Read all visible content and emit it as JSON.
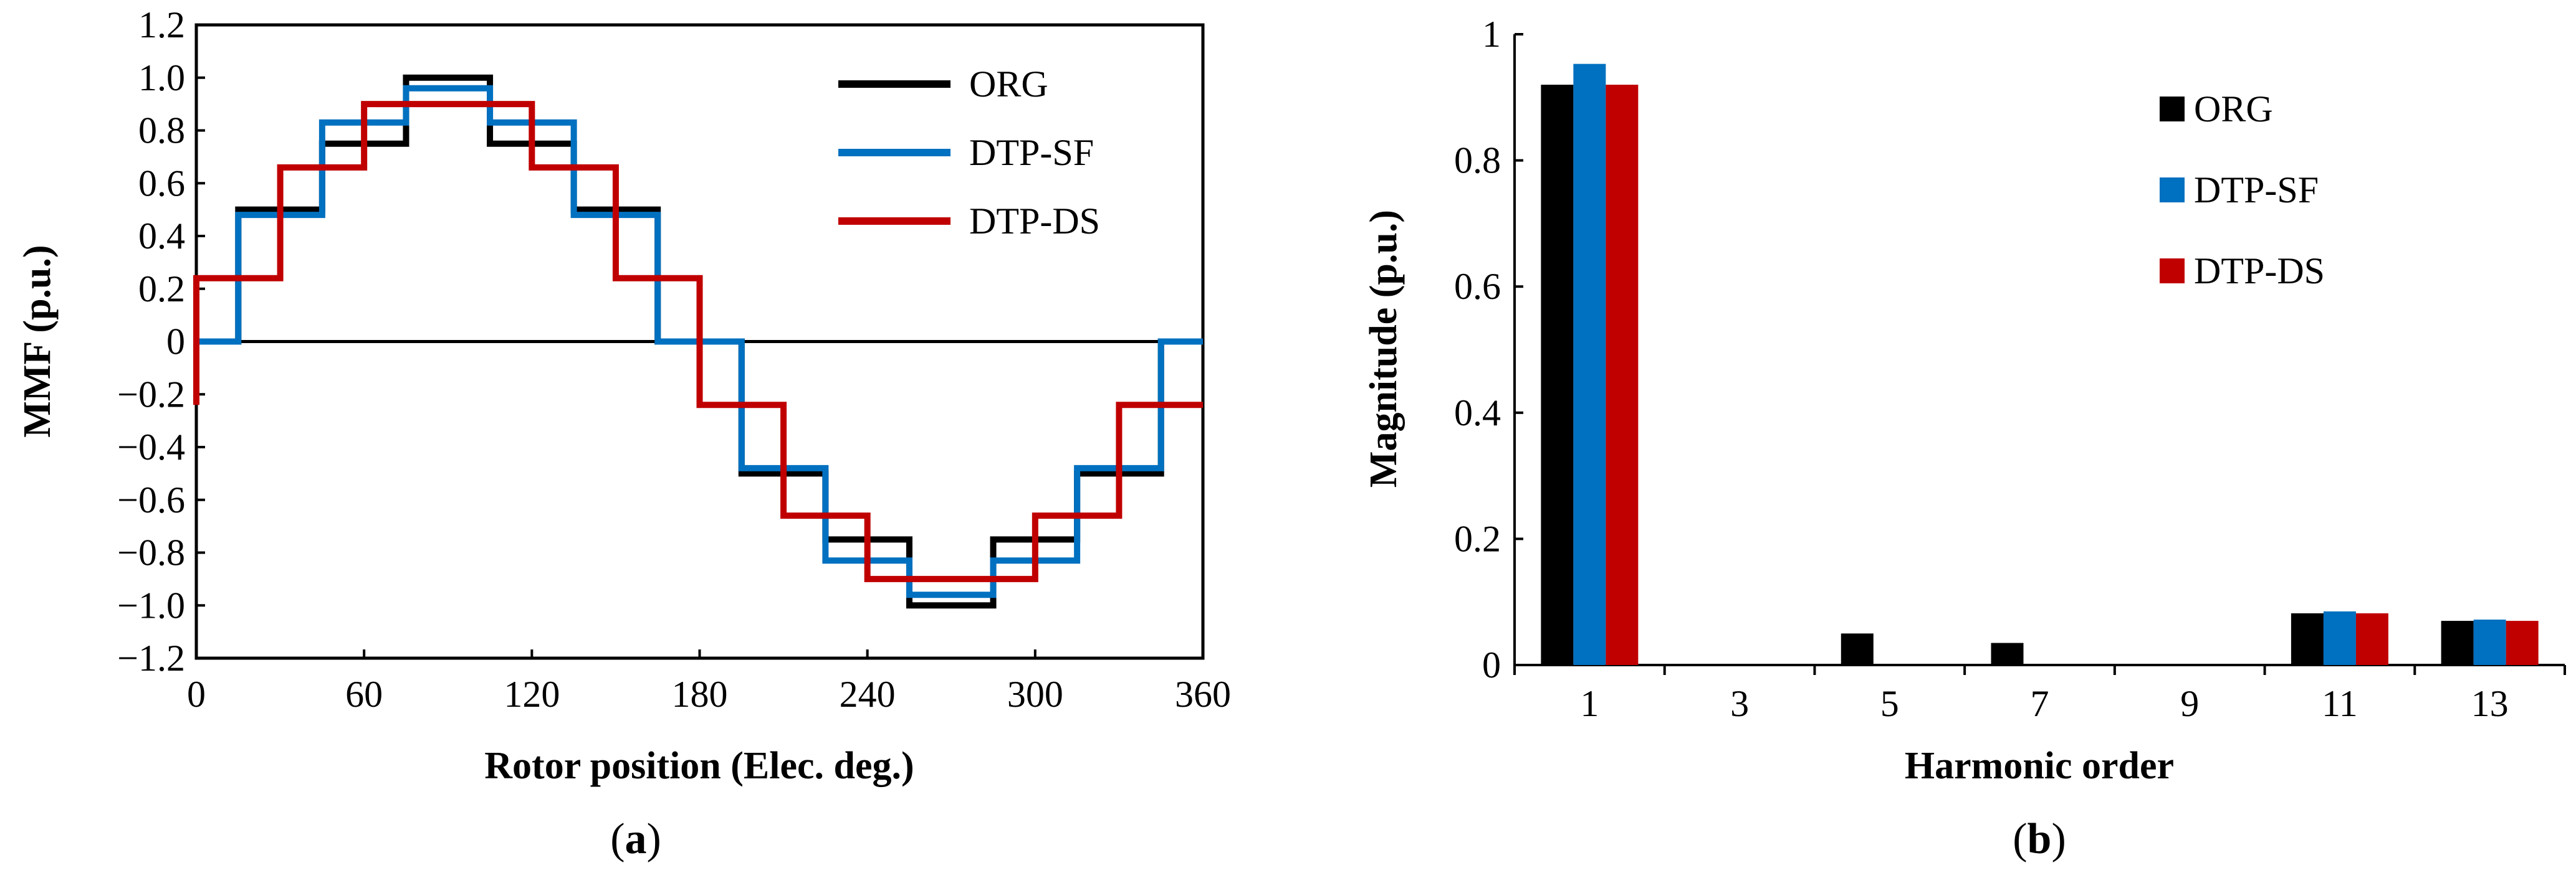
{
  "chart_data": [
    {
      "type": "line",
      "caption": {
        "prefix": "(",
        "letter": "a",
        "suffix": ")"
      },
      "xlabel": "Rotor position (Elec. deg.)",
      "ylabel": "MMF (p.u.)",
      "xlim": [
        0,
        360
      ],
      "ylim": [
        -1.2,
        1.2
      ],
      "xticks": [
        0,
        60,
        120,
        180,
        240,
        300,
        360
      ],
      "yticks": [
        1.2,
        1.0,
        0.8,
        0.6,
        0.4,
        0.2,
        0,
        -0.2,
        -0.4,
        -0.6,
        -0.8,
        -1.0,
        -1.2
      ],
      "ytick_labels": [
        "1.2",
        "1.0",
        "0.8",
        "0.6",
        "0.4",
        "0.2",
        "0",
        "−0.2",
        "−0.4",
        "−0.6",
        "−0.8",
        "−1.0",
        "−1.2"
      ],
      "step": true,
      "zero_line": true,
      "legend_position": "top-right",
      "series": [
        {
          "name": "ORG",
          "color": "#000000",
          "x": [
            0,
            15,
            45,
            75,
            105,
            135,
            165,
            195,
            225,
            255,
            285,
            315,
            345,
            360
          ],
          "y": [
            0,
            0.5,
            0.75,
            1.0,
            0.75,
            0.5,
            0,
            -0.5,
            -0.75,
            -1.0,
            -0.75,
            -0.5,
            0,
            0
          ]
        },
        {
          "name": "DTP-SF",
          "color": "#0070C0",
          "x": [
            0,
            15,
            45,
            75,
            105,
            135,
            165,
            195,
            225,
            255,
            285,
            315,
            345,
            360
          ],
          "y": [
            0,
            0.48,
            0.83,
            0.96,
            0.83,
            0.48,
            0,
            -0.48,
            -0.83,
            -0.96,
            -0.83,
            -0.48,
            0,
            0
          ]
        },
        {
          "name": "DTP-DS",
          "color": "#C00000",
          "x": [
            0,
            0,
            30,
            60,
            120,
            150,
            180,
            210,
            240,
            300,
            330,
            360
          ],
          "y": [
            -0.24,
            0.24,
            0.66,
            0.9,
            0.66,
            0.24,
            -0.24,
            -0.66,
            -0.9,
            -0.66,
            -0.24,
            -0.24
          ]
        }
      ]
    },
    {
      "type": "bar",
      "caption": {
        "prefix": "(",
        "letter": "b",
        "suffix": ")"
      },
      "xlabel": "Harmonic order",
      "ylabel": "Magnitude (p.u.)",
      "categories": [
        "1",
        "3",
        "5",
        "7",
        "9",
        "11",
        "13"
      ],
      "ylim": [
        0,
        1
      ],
      "yticks": [
        0,
        0.2,
        0.4,
        0.6,
        0.8,
        1
      ],
      "ytick_labels": [
        "0",
        "0.2",
        "0.4",
        "0.6",
        "0.8",
        "1"
      ],
      "legend_position": "top-right",
      "series": [
        {
          "name": "ORG",
          "color": "#000000",
          "values": [
            0.92,
            0,
            0.05,
            0.035,
            0,
            0.082,
            0.07
          ]
        },
        {
          "name": "DTP-SF",
          "color": "#0070C0",
          "values": [
            0.953,
            0,
            0,
            0,
            0,
            0.085,
            0.072
          ]
        },
        {
          "name": "DTP-DS",
          "color": "#C00000",
          "values": [
            0.92,
            0,
            0,
            0,
            0,
            0.082,
            0.07
          ]
        }
      ]
    }
  ]
}
